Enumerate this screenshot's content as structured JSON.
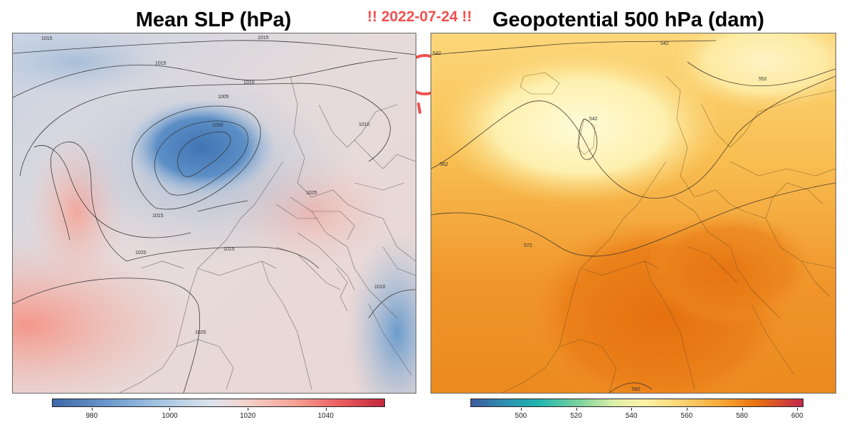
{
  "date_label": "!! 2022-07-24 !!",
  "left_map": {
    "title": "Mean SLP (hPa)",
    "contour_labels": [
      "1015",
      "1015",
      "1015",
      "1010",
      "1005",
      "1000",
      "1015",
      "1020",
      "1015",
      "1010",
      "1010",
      "1025",
      "1025"
    ],
    "colorbar": {
      "ticks": [
        "980",
        "1000",
        "1020",
        "1040"
      ],
      "min": 970,
      "max": 1055,
      "tick_values": [
        980,
        1000,
        1020,
        1040
      ]
    }
  },
  "right_map": {
    "title": "Geopotential 500 hPa (dam)",
    "contour_labels": [
      "542",
      "542",
      "552",
      "542",
      "562",
      "572",
      "582"
    ],
    "colorbar": {
      "ticks": [
        "500",
        "520",
        "540",
        "560",
        "580",
        "600"
      ],
      "min": 482,
      "max": 602,
      "tick_values": [
        500,
        520,
        540,
        560,
        580,
        600
      ]
    }
  },
  "sun_icon_color": "#f05050"
}
